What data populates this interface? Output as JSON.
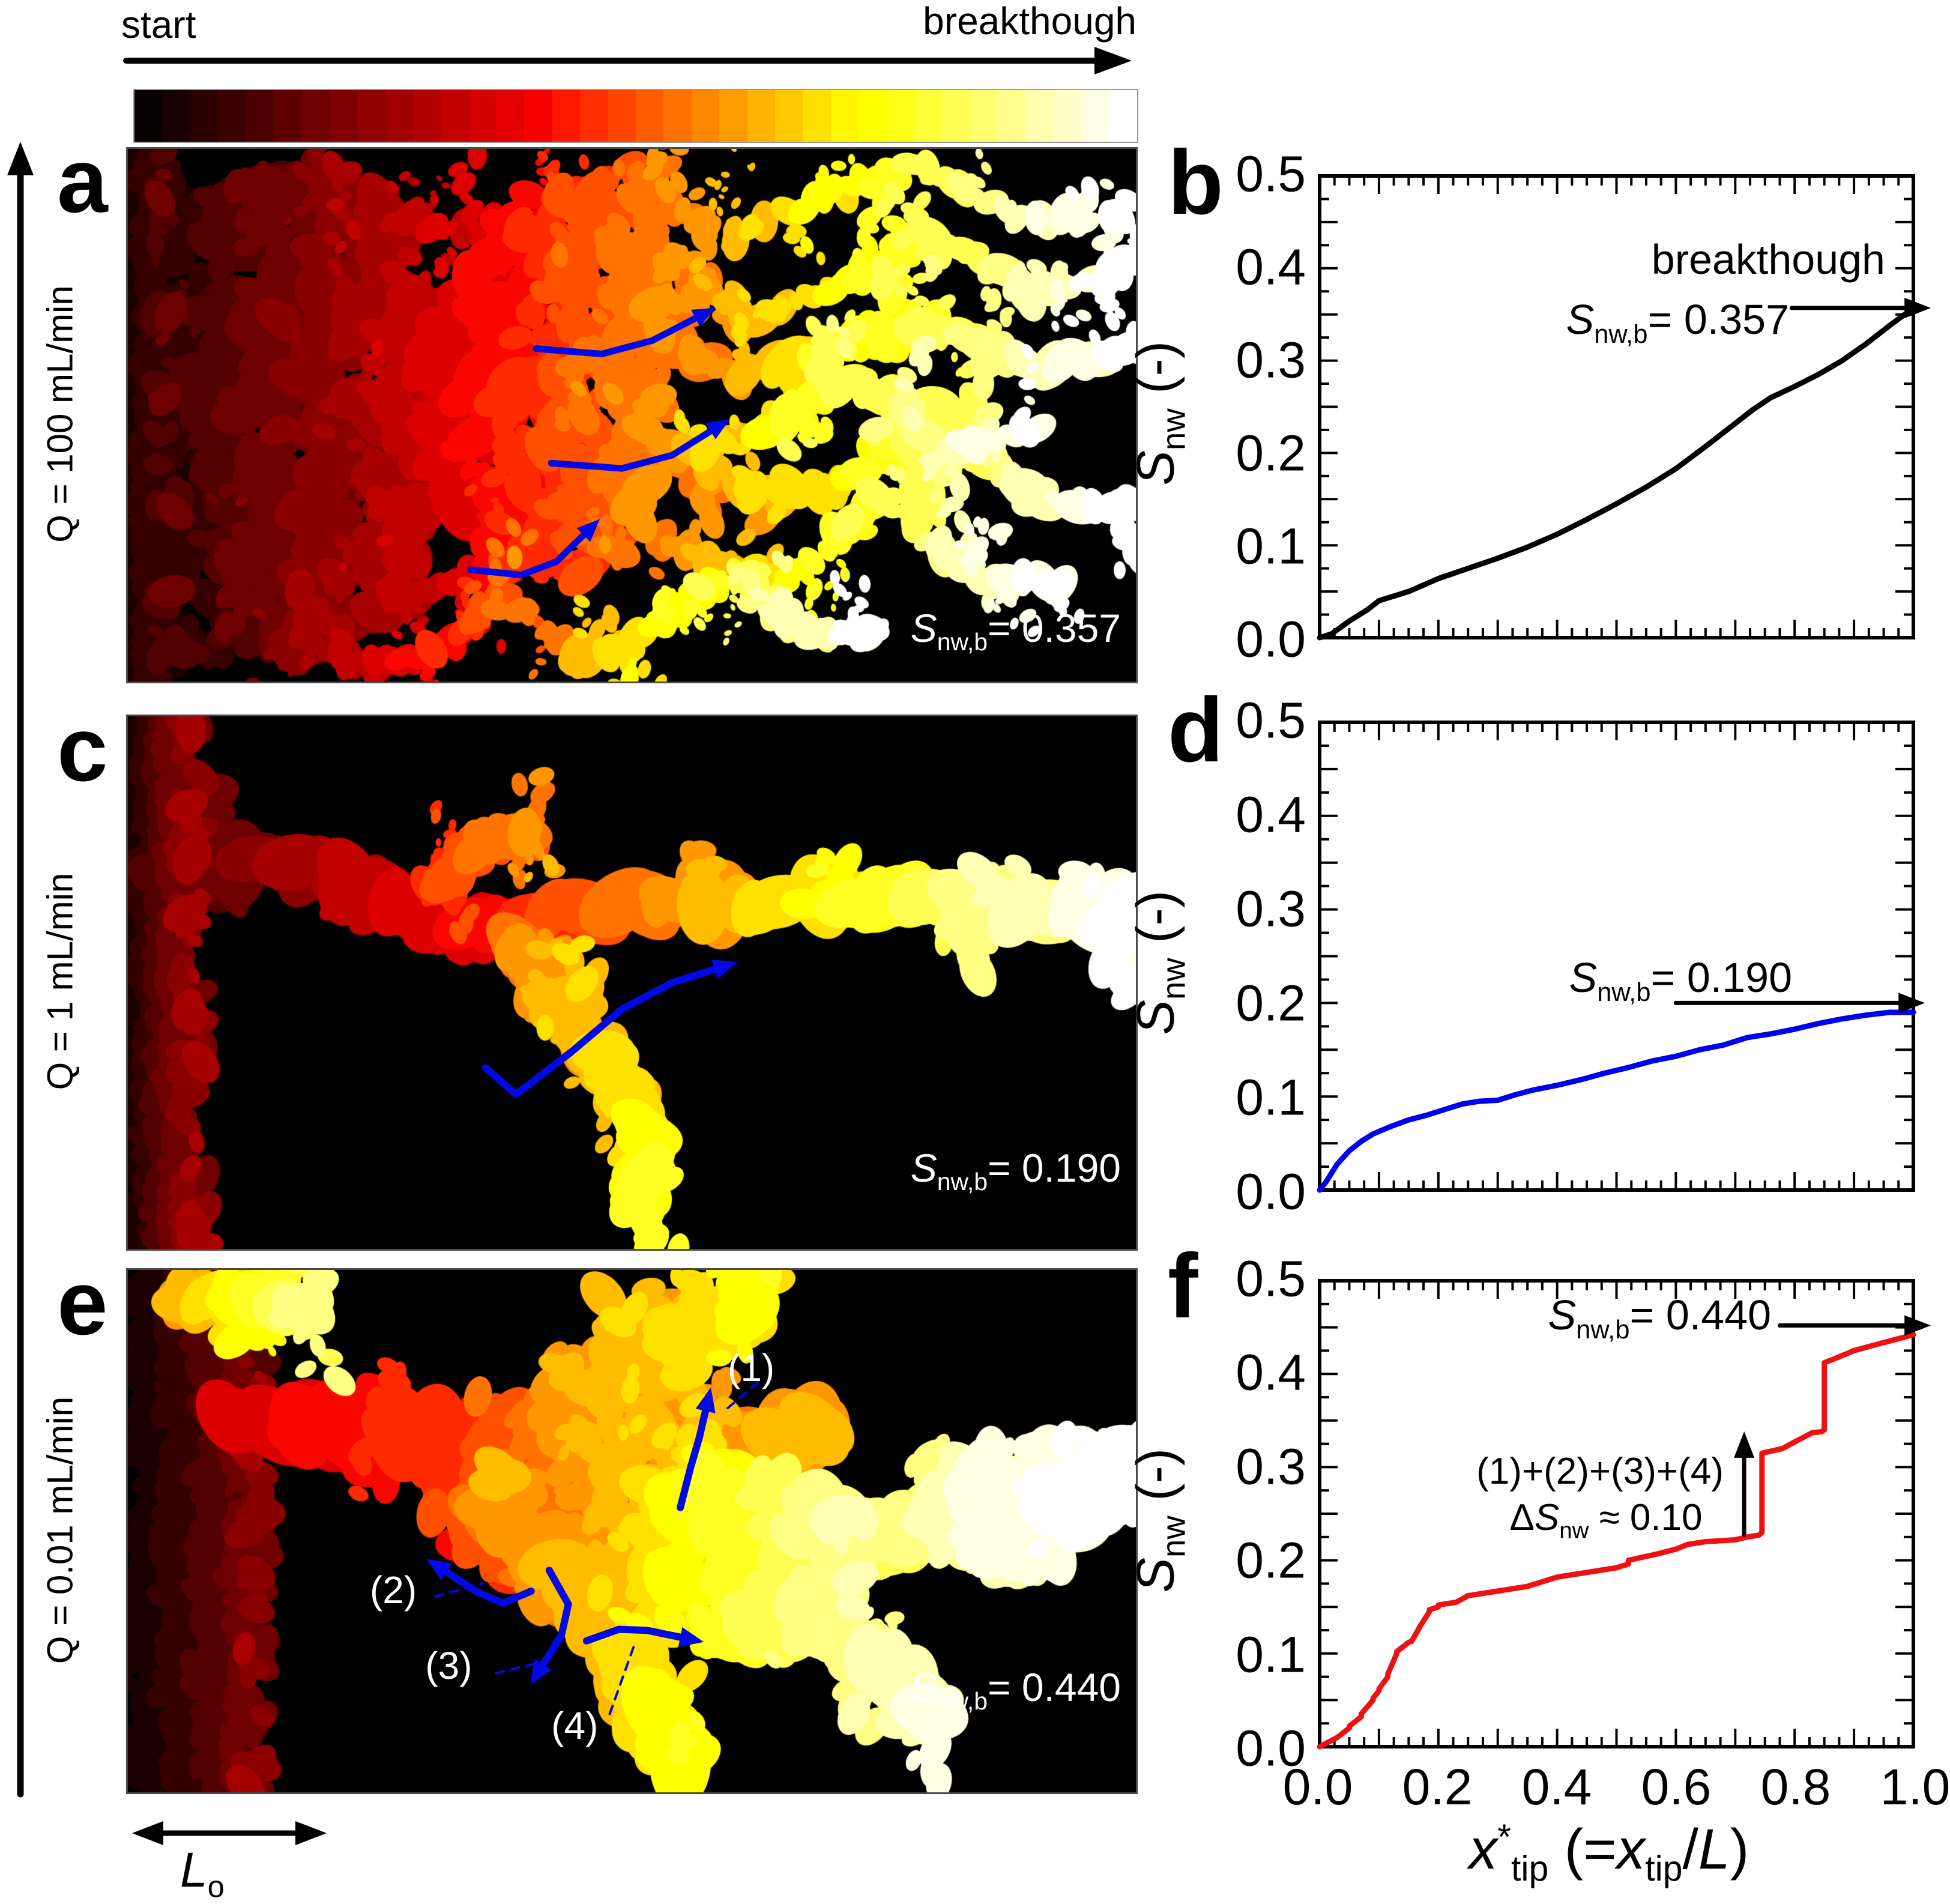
{
  "timeline": {
    "start_label": "start",
    "end_label": "breakthough"
  },
  "rows": [
    {
      "letter": "a",
      "q_label": "Q = 100 mL/min",
      "snwb": {
        "s": "S",
        "sub": "nw,b",
        "eq": "= 0.357"
      }
    },
    {
      "letter": "c",
      "q_label": "Q = 1 mL/min",
      "snwb": {
        "s": "S",
        "sub": "nw,b",
        "eq": "= 0.190"
      }
    },
    {
      "letter": "e",
      "q_label": "Q = 0.01 mL/min",
      "snwb": {
        "s": "S",
        "sub": "nw,b",
        "eq": "= 0.440"
      },
      "marks": [
        "(1)",
        "(2)",
        "(3)",
        "(4)"
      ]
    }
  ],
  "scalebar": {
    "l": "L",
    "sub": "o"
  },
  "plots": [
    {
      "letter": "b",
      "annotations": {
        "breakthrough": "breakthough",
        "snwb": {
          "s": "S",
          "sub": "nw,b",
          "eq": "= 0.357"
        }
      }
    },
    {
      "letter": "d",
      "annotations": {
        "snwb": {
          "s": "S",
          "sub": "nw,b",
          "eq": "= 0.190"
        }
      }
    },
    {
      "letter": "f",
      "annotations": {
        "snwb": {
          "s": "S",
          "sub": "nw,b",
          "eq": "= 0.440"
        },
        "sum": "(1)+(2)+(3)+(4)",
        "delta": {
          "d": "Δ",
          "s": "S",
          "sub": "nw",
          "eq": " ≈ 0.10"
        }
      }
    }
  ],
  "axes": {
    "y_title": {
      "s": "S",
      "sub": "nw",
      "rest": " (-)"
    },
    "y_ticks": [
      "0.5",
      "0.4",
      "0.3",
      "0.2",
      "0.1",
      "0.0"
    ],
    "x_ticks": [
      "0.0",
      "0.2",
      "0.4",
      "0.6",
      "0.8",
      "1.0"
    ],
    "x_title": {
      "v1": "x",
      "star": "*",
      "sub1": "tip",
      "open": " (=",
      "v2": "x",
      "sub2": "tip",
      "slash": "/",
      "L": "L",
      "close": ")"
    }
  },
  "colors": {
    "curve_b": "#000000",
    "curve_d": "#0000ee",
    "curve_f": "#ee1111",
    "guide_arrow_blue": "#0009e6",
    "panel_background": "#000000",
    "panel_border": "#4a4a4a",
    "colorbar_border": "#999999",
    "annotation_text_on_panel": "#ffffff"
  },
  "chart_data": [
    {
      "type": "line",
      "name": "Q = 100 mL/min",
      "color": "#000000",
      "xlabel": "x*tip (=xtip/L)",
      "ylabel": "Snw (-)",
      "xlim": [
        0,
        1
      ],
      "ylim": [
        0,
        0.5
      ],
      "breakthrough_value": 0.357,
      "annotations": [
        "breakthough",
        "Snw,b= 0.357"
      ],
      "x": [
        0,
        0.02,
        0.05,
        0.08,
        0.1,
        0.15,
        0.2,
        0.25,
        0.3,
        0.35,
        0.4,
        0.45,
        0.5,
        0.55,
        0.6,
        0.65,
        0.7,
        0.73,
        0.76,
        0.8,
        0.84,
        0.88,
        0.92,
        0.96,
        1.0
      ],
      "y": [
        0,
        0.004,
        0.018,
        0.03,
        0.04,
        0.05,
        0.064,
        0.075,
        0.086,
        0.098,
        0.112,
        0.128,
        0.145,
        0.163,
        0.183,
        0.207,
        0.232,
        0.247,
        0.26,
        0.272,
        0.285,
        0.3,
        0.318,
        0.338,
        0.357
      ]
    },
    {
      "type": "line",
      "name": "Q = 1 mL/min",
      "color": "#0000ee",
      "xlabel": "x*tip (=xtip/L)",
      "ylabel": "Snw (-)",
      "xlim": [
        0,
        1
      ],
      "ylim": [
        0,
        0.5
      ],
      "breakthrough_value": 0.19,
      "annotations": [
        "Snw,b= 0.190"
      ],
      "x": [
        0,
        0.01,
        0.02,
        0.03,
        0.05,
        0.07,
        0.09,
        0.12,
        0.15,
        0.18,
        0.21,
        0.24,
        0.27,
        0.3,
        0.33,
        0.36,
        0.4,
        0.44,
        0.48,
        0.52,
        0.56,
        0.6,
        0.64,
        0.68,
        0.72,
        0.76,
        0.8,
        0.84,
        0.88,
        0.92,
        0.96,
        1.0
      ],
      "y": [
        0,
        0.008,
        0.018,
        0.028,
        0.042,
        0.052,
        0.06,
        0.068,
        0.075,
        0.08,
        0.086,
        0.092,
        0.095,
        0.096,
        0.102,
        0.107,
        0.112,
        0.118,
        0.125,
        0.131,
        0.138,
        0.143,
        0.15,
        0.155,
        0.163,
        0.167,
        0.172,
        0.178,
        0.183,
        0.187,
        0.19,
        0.19
      ]
    },
    {
      "type": "line",
      "name": "Q = 0.01 mL/min",
      "color": "#ee1111",
      "xlabel": "x*tip (=xtip/L)",
      "ylabel": "Snw (-)",
      "xlim": [
        0,
        1
      ],
      "ylim": [
        0,
        0.5
      ],
      "breakthrough_value": 0.44,
      "annotations": [
        "Snw,b= 0.440",
        "(1)+(2)+(3)+(4)",
        "ΔSnw ≈ 0.10"
      ],
      "x": [
        0,
        0.03,
        0.05,
        0.05,
        0.07,
        0.07,
        0.09,
        0.09,
        0.1,
        0.1,
        0.115,
        0.115,
        0.13,
        0.13,
        0.15,
        0.155,
        0.17,
        0.185,
        0.185,
        0.2,
        0.2,
        0.23,
        0.25,
        0.3,
        0.35,
        0.4,
        0.45,
        0.5,
        0.52,
        0.52,
        0.57,
        0.6,
        0.62,
        0.65,
        0.7,
        0.72,
        0.74,
        0.745,
        0.745,
        0.78,
        0.8,
        0.83,
        0.845,
        0.85,
        0.85,
        0.87,
        0.9,
        0.94,
        0.97,
        1.0
      ],
      "y": [
        0,
        0.01,
        0.02,
        0.022,
        0.032,
        0.035,
        0.05,
        0.052,
        0.06,
        0.062,
        0.075,
        0.078,
        0.1,
        0.102,
        0.112,
        0.113,
        0.13,
        0.145,
        0.147,
        0.15,
        0.152,
        0.155,
        0.162,
        0.167,
        0.172,
        0.182,
        0.187,
        0.192,
        0.196,
        0.2,
        0.207,
        0.212,
        0.217,
        0.22,
        0.222,
        0.225,
        0.227,
        0.23,
        0.315,
        0.32,
        0.327,
        0.337,
        0.338,
        0.34,
        0.412,
        0.417,
        0.425,
        0.432,
        0.437,
        0.442
      ]
    }
  ]
}
